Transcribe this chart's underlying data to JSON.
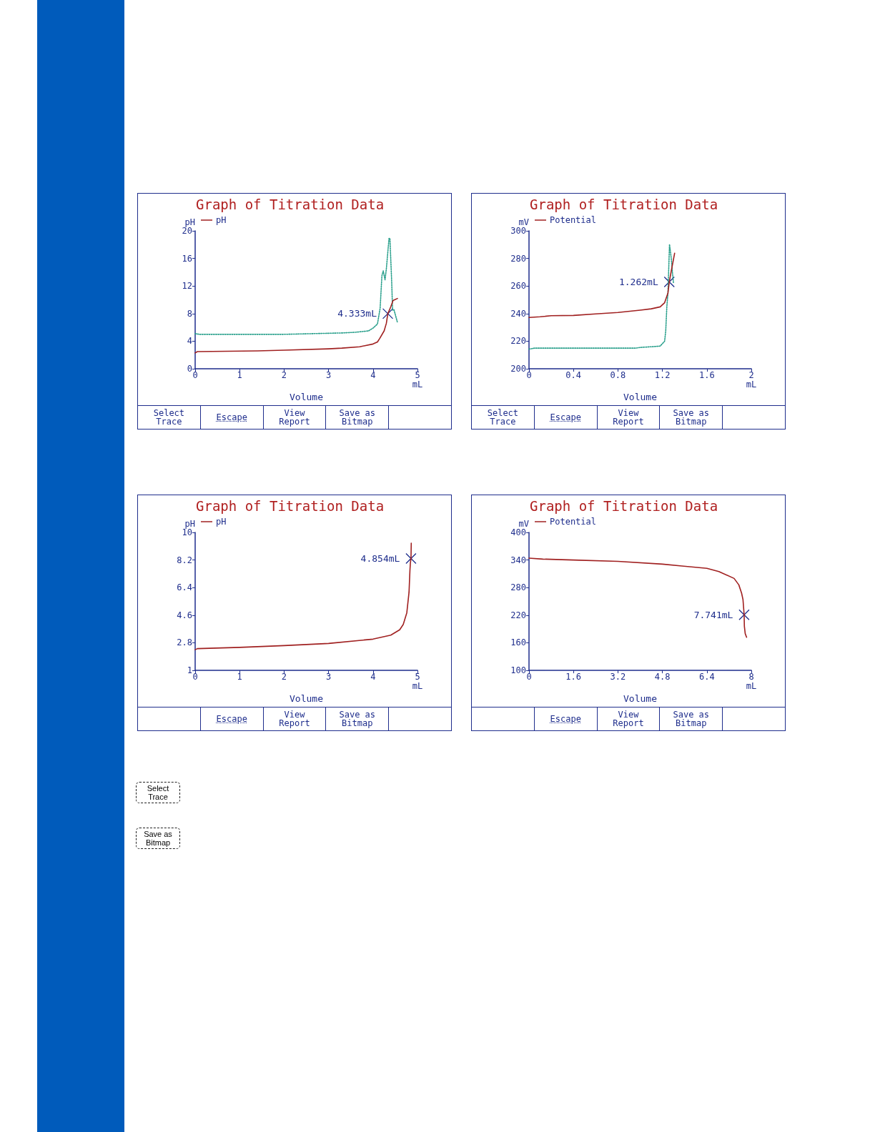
{
  "chart_data": [
    {
      "type": "line",
      "title": "Graph of Titration Data",
      "ylabel": "pH",
      "xlabel": "Volume",
      "legend": "top left",
      "marker": "none",
      "line_style": "solid",
      "xlim": [
        0,
        5
      ],
      "xticks": [
        0,
        1,
        2,
        3,
        4,
        {
          "value": 5,
          "label": "5\nmL"
        }
      ],
      "ylim": [
        0,
        20
      ],
      "yticks": [
        0,
        4,
        8,
        12,
        16,
        20
      ],
      "series": [
        {
          "name": "pH",
          "color": "#a02020",
          "x": [
            0,
            0.05,
            1.4,
            2.0,
            3.0,
            3.3,
            3.7,
            4.0,
            4.1,
            4.15,
            4.25,
            4.3,
            4.333,
            4.4,
            4.45,
            4.55
          ],
          "values": [
            2.3,
            2.5,
            2.6,
            2.7,
            2.9,
            3.0,
            3.2,
            3.6,
            3.9,
            4.4,
            5.5,
            6.6,
            8,
            9,
            9.9,
            10.2
          ]
        },
        {
          "color": "#2aa08c",
          "line_style": "dotted",
          "x": [
            0,
            0.1,
            2.0,
            3.3,
            3.6,
            3.9,
            4.0,
            4.1,
            4.16,
            4.2,
            4.23,
            4.27,
            4.3,
            4.36,
            4.38,
            4.42,
            4.44,
            4.47,
            4.55
          ],
          "values": [
            5.1,
            5.0,
            5.0,
            5.2,
            5.3,
            5.5,
            5.9,
            6.5,
            8.8,
            13.5,
            14.2,
            12.9,
            14.5,
            18.9,
            18.9,
            12.6,
            8.5,
            8.6,
            6.7
          ]
        }
      ],
      "annotations": [
        {
          "text": "4.333mL",
          "x": 4.333,
          "y": 8
        },
        "Select Trace",
        "Escape",
        "View Report",
        "Save as Bitmap"
      ]
    },
    {
      "type": "line",
      "title": "Graph of Titration Data",
      "ylabel": "mV",
      "xlabel": "Volume",
      "legend": "top left",
      "marker": "none",
      "line_style": "solid",
      "xlim": [
        0,
        2
      ],
      "xticks": [
        0,
        0.4,
        0.8,
        1.2,
        1.6,
        {
          "value": 2,
          "label": "2\nmL"
        }
      ],
      "ylim": [
        200,
        300
      ],
      "yticks": [
        200,
        220,
        240,
        260,
        280,
        300
      ],
      "series": [
        {
          "name": "Potential",
          "color": "#a02020",
          "x": [
            0,
            0.1,
            0.2,
            0.4,
            0.6,
            0.8,
            1.0,
            1.1,
            1.18,
            1.22,
            1.25,
            1.262,
            1.28,
            1.31
          ],
          "values": [
            237.2,
            237.7,
            238.5,
            238.7,
            239.8,
            240.8,
            242.5,
            243.5,
            244.9,
            247.9,
            255,
            263,
            271,
            283.8
          ]
        },
        {
          "color": "#2aa08c",
          "line_style": "dotted",
          "x": [
            0,
            0.05,
            0.96,
            1.0,
            1.1,
            1.18,
            1.22,
            1.23,
            1.24,
            1.25,
            1.264,
            1.28,
            1.29,
            1.3
          ],
          "values": [
            214.3,
            215,
            215,
            215.5,
            216,
            216.5,
            220,
            227.5,
            245,
            255,
            290.2,
            280,
            270,
            262
          ]
        }
      ],
      "annotations": [
        {
          "text": "1.262mL",
          "x": 1.262,
          "y": 263
        },
        "Select Trace",
        "Escape",
        "View Report",
        "Save as Bitmap"
      ]
    },
    {
      "type": "line",
      "title": "Graph of Titration Data",
      "ylabel": "pH",
      "xlabel": "Volume",
      "legend": "top left",
      "marker": "none",
      "line_style": "solid",
      "xlim": [
        0,
        5
      ],
      "xticks": [
        0,
        1,
        2,
        3,
        4,
        {
          "value": 5,
          "label": "5\nmL"
        }
      ],
      "ylim": [
        1,
        10
      ],
      "yticks": [
        1,
        2.8,
        4.6,
        6.4,
        8.2,
        10
      ],
      "series": [
        {
          "name": "pH",
          "color": "#a02020",
          "x": [
            0,
            0.05,
            1,
            2,
            3,
            4,
            4.4,
            4.6,
            4.68,
            4.76,
            4.81,
            4.83,
            4.84,
            4.854,
            4.86
          ],
          "values": [
            2.35,
            2.42,
            2.5,
            2.62,
            2.76,
            3.04,
            3.3,
            3.65,
            4.0,
            4.76,
            6.1,
            7.5,
            8.0,
            8.3,
            9.3
          ]
        }
      ],
      "annotations": [
        {
          "text": "4.854mL",
          "x": 4.854,
          "y": 8.3
        },
        "Escape",
        "View Report",
        "Save as Bitmap"
      ]
    },
    {
      "type": "line",
      "title": "Graph of Titration Data",
      "ylabel": "mV",
      "xlabel": "Volume",
      "legend": "top left",
      "marker": "none",
      "line_style": "solid",
      "xlim": [
        0,
        8
      ],
      "xticks": [
        0,
        1.6,
        3.2,
        4.8,
        6.4,
        {
          "value": 8,
          "label": "8\nmL"
        }
      ],
      "ylim": [
        100,
        400
      ],
      "yticks": [
        100,
        160,
        220,
        280,
        340,
        400
      ],
      "series": [
        {
          "name": "Potential",
          "color": "#a02020",
          "x": [
            0,
            0.5,
            1.6,
            3.2,
            4.8,
            5.5,
            6.4,
            6.83,
            7.38,
            7.55,
            7.65,
            7.7,
            7.741,
            7.75,
            7.78,
            7.83
          ],
          "values": [
            344,
            342,
            340,
            337,
            331,
            327,
            322,
            315,
            300,
            286,
            268,
            254,
            221,
            196,
            180,
            172
          ]
        }
      ],
      "annotations": [
        {
          "text": "7.741mL",
          "x": 7.741,
          "y": 221
        },
        "Escape",
        "View Report",
        "Save as Bitmap"
      ]
    },
    {
      "type": "other",
      "annotations": [
        "Select Trace",
        "Save as Bitmap"
      ]
    }
  ]
}
